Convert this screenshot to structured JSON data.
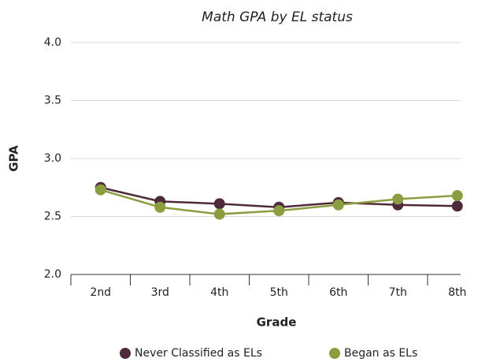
{
  "chart_data": {
    "type": "line",
    "title": "Math GPA by EL status",
    "x_label": "Grade",
    "y_label": "GPA",
    "categories": [
      "2nd",
      "3rd",
      "4th",
      "5th",
      "6th",
      "7th",
      "8th"
    ],
    "series": [
      {
        "name": "Never Classified as ELs",
        "color": "#4e2a3a",
        "values": [
          2.75,
          2.63,
          2.61,
          2.58,
          2.62,
          2.6,
          2.59
        ]
      },
      {
        "name": "Began as ELs",
        "color": "#8a9e3f",
        "values": [
          2.73,
          2.58,
          2.52,
          2.55,
          2.6,
          2.65,
          2.68
        ]
      }
    ],
    "ylim": [
      2,
      4
    ],
    "yticks": [
      {
        "value": 2,
        "label": "2.0"
      },
      {
        "value": 2.5,
        "label": "2.5"
      },
      {
        "value": 3,
        "label": "3.0"
      },
      {
        "value": 3.5,
        "label": "3.5"
      },
      {
        "value": 4,
        "label": "4.0"
      }
    ],
    "grid": true,
    "legend": "bottom"
  }
}
